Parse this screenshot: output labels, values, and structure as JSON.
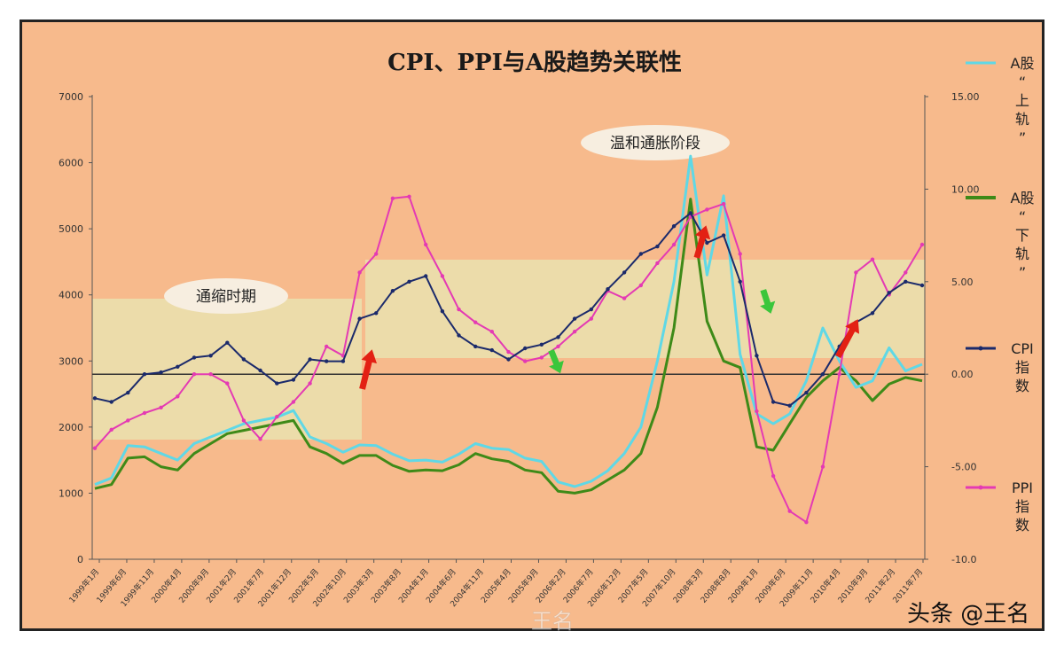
{
  "chart_data": {
    "type": "line",
    "title": "CPI、PPI与A股趋势关联性",
    "left_axis": {
      "ticks": [
        0,
        1000,
        2000,
        3000,
        4000,
        5000,
        6000,
        7000
      ],
      "range": [
        0,
        7000
      ]
    },
    "right_axis": {
      "ticks": [
        "-10.0",
        "-5.00",
        "0.00",
        "5.00",
        "10.00",
        "15.00"
      ],
      "range": [
        -10,
        15
      ]
    },
    "x_ticks": [
      "1999年1月",
      "1999年6月",
      "1999年11月",
      "2000年4月",
      "2000年9月",
      "2001年2月",
      "2001年7月",
      "2001年12月",
      "2002年5月",
      "2002年10月",
      "2003年3月",
      "2003年8月",
      "2004年1月",
      "2004年6月",
      "2004年11月",
      "2005年4月",
      "2005年9月",
      "2006年2月",
      "2006年7月",
      "2006年12月",
      "2007年5月",
      "2007年10月",
      "2008年3月",
      "2008年8月",
      "2009年1月",
      "2009年6月",
      "2009年11月",
      "2010年4月",
      "2010年9月",
      "2011年2月",
      "2011年7月"
    ],
    "annotations": {
      "deflation": "通缩时期",
      "inflation": "温和通胀阶段"
    },
    "zero_line_right_axis": 0,
    "series": [
      {
        "name": "A股“上轨”",
        "axis": "left",
        "color": "#5fd8e6",
        "values": [
          1130,
          1230,
          1720,
          1700,
          1600,
          1500,
          1750,
          1850,
          1950,
          2050,
          2100,
          2150,
          2250,
          1850,
          1750,
          1620,
          1730,
          1720,
          1590,
          1490,
          1500,
          1470,
          1590,
          1750,
          1680,
          1660,
          1530,
          1480,
          1170,
          1100,
          1180,
          1340,
          1600,
          2000,
          3000,
          4200,
          6100,
          4300,
          5500,
          3100,
          2200,
          2050,
          2200,
          2700,
          3500,
          3000,
          2600,
          2700,
          3200,
          2850,
          2950
        ]
      },
      {
        "name": "A股“下轨”",
        "axis": "left",
        "color": "#3e8a18",
        "values": [
          1070,
          1130,
          1530,
          1550,
          1400,
          1350,
          1600,
          1750,
          1900,
          1950,
          2000,
          2050,
          2100,
          1700,
          1600,
          1450,
          1570,
          1570,
          1420,
          1330,
          1350,
          1340,
          1430,
          1600,
          1520,
          1480,
          1350,
          1310,
          1030,
          1000,
          1050,
          1200,
          1350,
          1600,
          2300,
          3500,
          5450,
          3600,
          3000,
          2900,
          1700,
          1650,
          2050,
          2450,
          2700,
          2900,
          2700,
          2400,
          2650,
          2750,
          2700
        ]
      },
      {
        "name": "CPI指数",
        "axis": "right",
        "color": "#1b2a6b",
        "values": [
          -1.3,
          -1.5,
          -1.0,
          0.0,
          0.1,
          0.4,
          0.9,
          1.0,
          1.7,
          0.8,
          0.2,
          -0.5,
          -0.3,
          0.8,
          0.7,
          0.7,
          3.0,
          3.3,
          4.5,
          5.0,
          5.3,
          3.4,
          2.1,
          1.5,
          1.3,
          0.8,
          1.4,
          1.6,
          2.0,
          3.0,
          3.5,
          4.6,
          5.5,
          6.5,
          6.9,
          8.0,
          8.7,
          7.1,
          7.5,
          5.0,
          1.0,
          -1.5,
          -1.7,
          -1.0,
          0.0,
          1.5,
          2.8,
          3.3,
          4.4,
          5.0,
          4.8
        ]
      },
      {
        "name": "PPI指数",
        "axis": "right",
        "color": "#e43ab3",
        "values": [
          -4.0,
          -3.0,
          -2.5,
          -2.1,
          -1.8,
          -1.2,
          0.0,
          0.0,
          -0.5,
          -2.5,
          -3.5,
          -2.3,
          -1.5,
          -0.5,
          1.5,
          1.0,
          5.5,
          6.5,
          9.5,
          9.6,
          7.0,
          5.3,
          3.5,
          2.8,
          2.3,
          1.2,
          0.7,
          0.9,
          1.5,
          2.3,
          3.0,
          4.5,
          4.1,
          4.8,
          6.0,
          7.0,
          8.5,
          8.9,
          9.2,
          6.5,
          -2.0,
          -5.5,
          -7.4,
          -8.0,
          -5.0,
          0.0,
          5.5,
          6.2,
          4.3,
          5.5,
          7.0
        ]
      }
    ],
    "legend": [
      {
        "key": "up",
        "lines": [
          "A股",
          "“",
          "上",
          "轨",
          "”"
        ]
      },
      {
        "key": "down",
        "lines": [
          "A股",
          "“",
          "下",
          "轨",
          "”"
        ]
      },
      {
        "key": "cpi",
        "lines": [
          "CPI",
          "指",
          "数"
        ]
      },
      {
        "key": "ppi",
        "lines": [
          "PPI",
          "指",
          "数"
        ]
      }
    ],
    "legend_placement": "right"
  },
  "watermarks": {
    "weibo": "王名",
    "toutiao": "头条 @王名"
  }
}
